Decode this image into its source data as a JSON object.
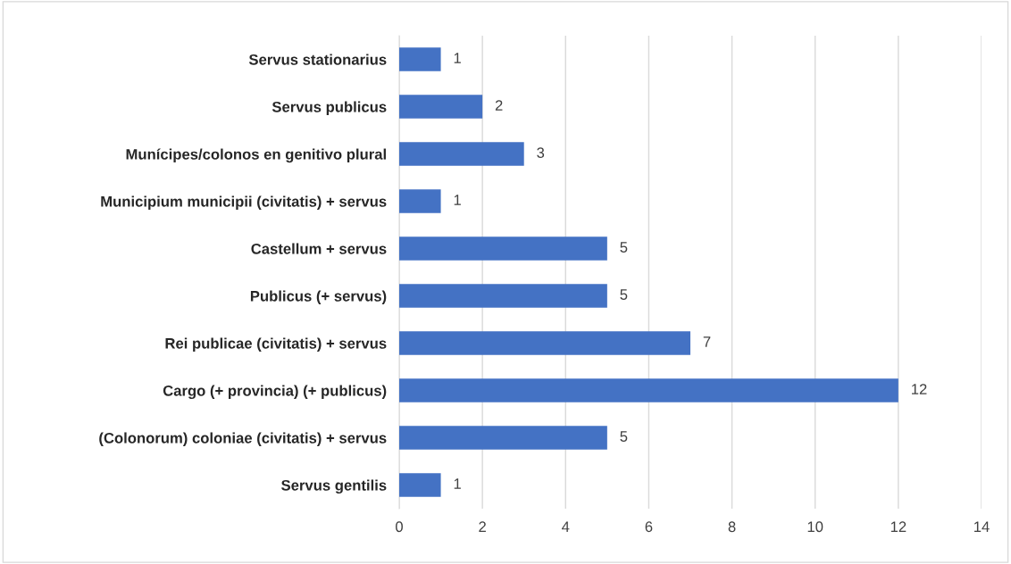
{
  "chart_data": {
    "type": "bar",
    "orientation": "horizontal",
    "categories": [
      "Servus stationarius",
      "Servus publicus",
      "Munícipes/colonos en genitivo plural",
      "Municipium municipii (civitatis) + servus",
      "Castellum + servus",
      "Publicus (+ servus)",
      "Rei publicae (civitatis) + servus",
      "Cargo (+ provincia) (+ publicus)",
      "(Colonorum) coloniae (civitatis) + servus",
      "Servus gentilis"
    ],
    "values": [
      1,
      2,
      3,
      1,
      5,
      5,
      7,
      12,
      5,
      1
    ],
    "color": "#4472c4",
    "xlim": [
      0,
      14
    ],
    "xticks": [
      0,
      2,
      4,
      6,
      8,
      10,
      12,
      14
    ],
    "grid": "x",
    "data_labels": true,
    "legend": false
  }
}
